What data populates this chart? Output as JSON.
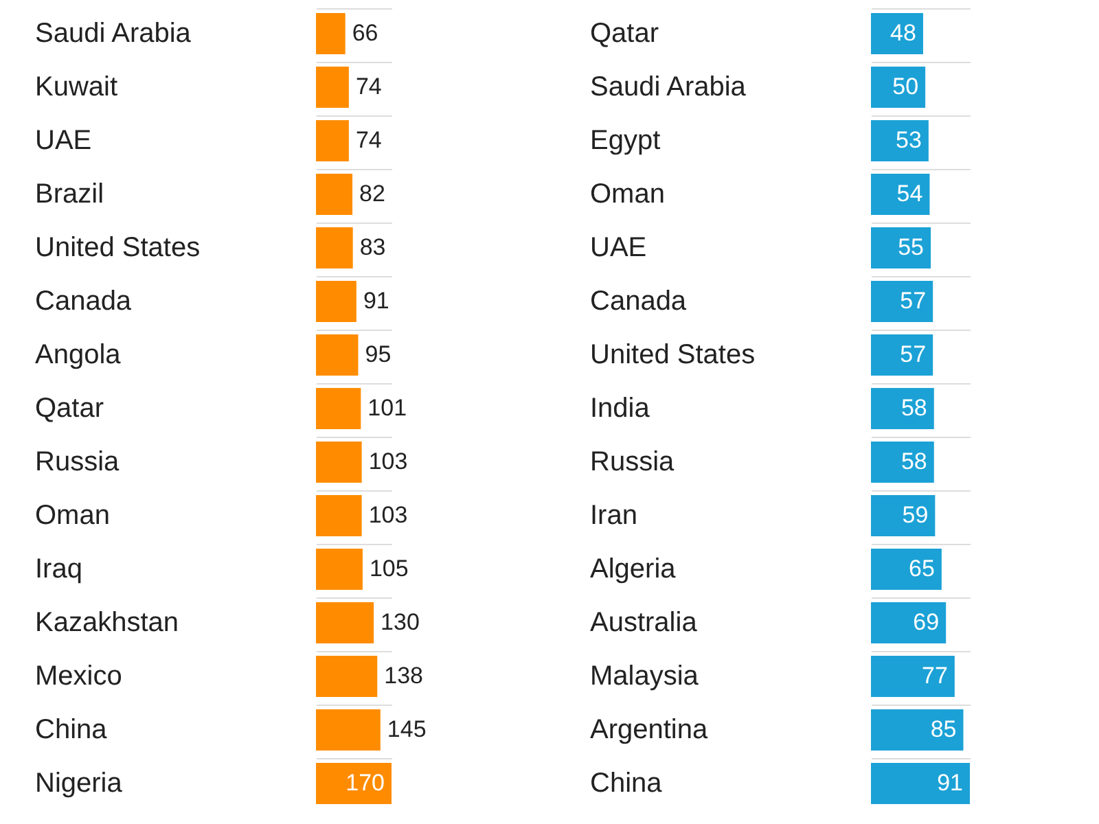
{
  "chart_data": [
    {
      "type": "bar",
      "orientation": "horizontal",
      "data_labels": true,
      "grid": "y",
      "tick_labels": "y",
      "categories": [
        "Saudi Arabia",
        "Kuwait",
        "UAE",
        "Brazil",
        "United States",
        "Canada",
        "Angola",
        "Qatar",
        "Russia",
        "Oman",
        "Iraq",
        "Kazakhstan",
        "Mexico",
        "China",
        "Nigeria"
      ],
      "series": [
        {
          "color": "#ff8c00",
          "values": [
            66,
            74,
            74,
            82,
            83,
            91,
            95,
            101,
            103,
            103,
            105,
            130,
            138,
            145,
            170
          ]
        }
      ]
    },
    {
      "type": "bar",
      "orientation": "horizontal",
      "data_labels": true,
      "grid": "y",
      "tick_labels": "y",
      "categories": [
        "Qatar",
        "Saudi Arabia",
        "Egypt",
        "Oman",
        "UAE",
        "Canada",
        "United States",
        "India",
        "Russia",
        "Iran",
        "Algeria",
        "Australia",
        "Malaysia",
        "Argentina",
        "China"
      ],
      "series": [
        {
          "color": "#1ba1d6",
          "values": [
            48,
            50,
            53,
            54,
            55,
            57,
            57,
            58,
            58,
            59,
            65,
            69,
            77,
            85,
            91
          ]
        }
      ]
    }
  ]
}
